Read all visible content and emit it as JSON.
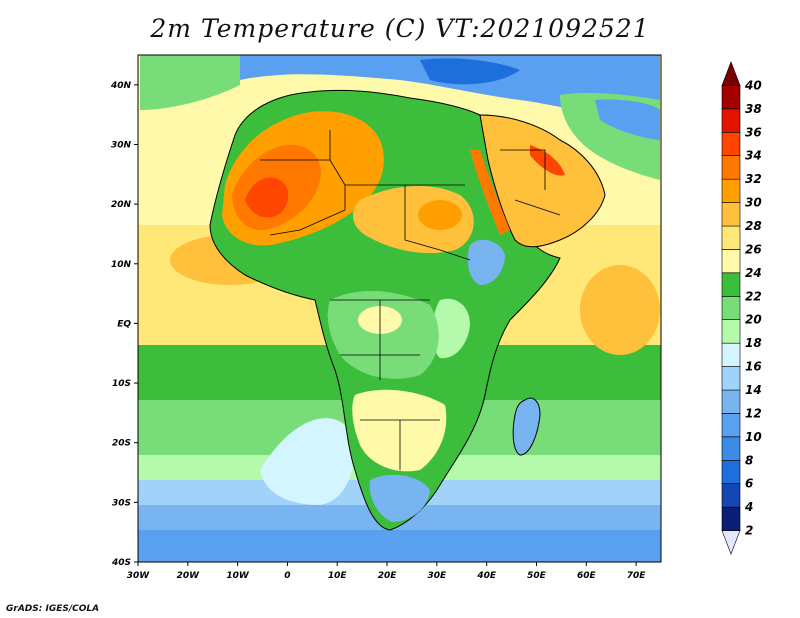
{
  "title": "2m Temperature (C) VT:2021092521",
  "credit": "GrADS: IGES/COLA",
  "map": {
    "lon_range": [
      -30,
      75
    ],
    "lat_range": [
      -40,
      45
    ],
    "lon_ticks": [
      "30W",
      "20W",
      "10W",
      "0",
      "10E",
      "20E",
      "30E",
      "40E",
      "50E",
      "60E",
      "70E"
    ],
    "lat_ticks": [
      "40S",
      "30S",
      "20S",
      "10S",
      "EQ",
      "10N",
      "20N",
      "30N",
      "40N"
    ]
  },
  "colorbar": {
    "labels": [
      "2",
      "4",
      "6",
      "8",
      "10",
      "12",
      "14",
      "16",
      "18",
      "20",
      "22",
      "24",
      "26",
      "28",
      "30",
      "32",
      "34",
      "36",
      "38",
      "40"
    ],
    "colors": [
      "#e6e6fa",
      "#0a1e78",
      "#1446b4",
      "#1e6edc",
      "#3c8ce6",
      "#5aa0f0",
      "#78b4f0",
      "#a0d2fa",
      "#d2f5ff",
      "#b4faaa",
      "#78dc78",
      "#3cbe3c",
      "#fffaaa",
      "#ffe878",
      "#ffc03c",
      "#ffa000",
      "#ff7800",
      "#ff4600",
      "#e11400",
      "#a50000",
      "#780000"
    ]
  }
}
